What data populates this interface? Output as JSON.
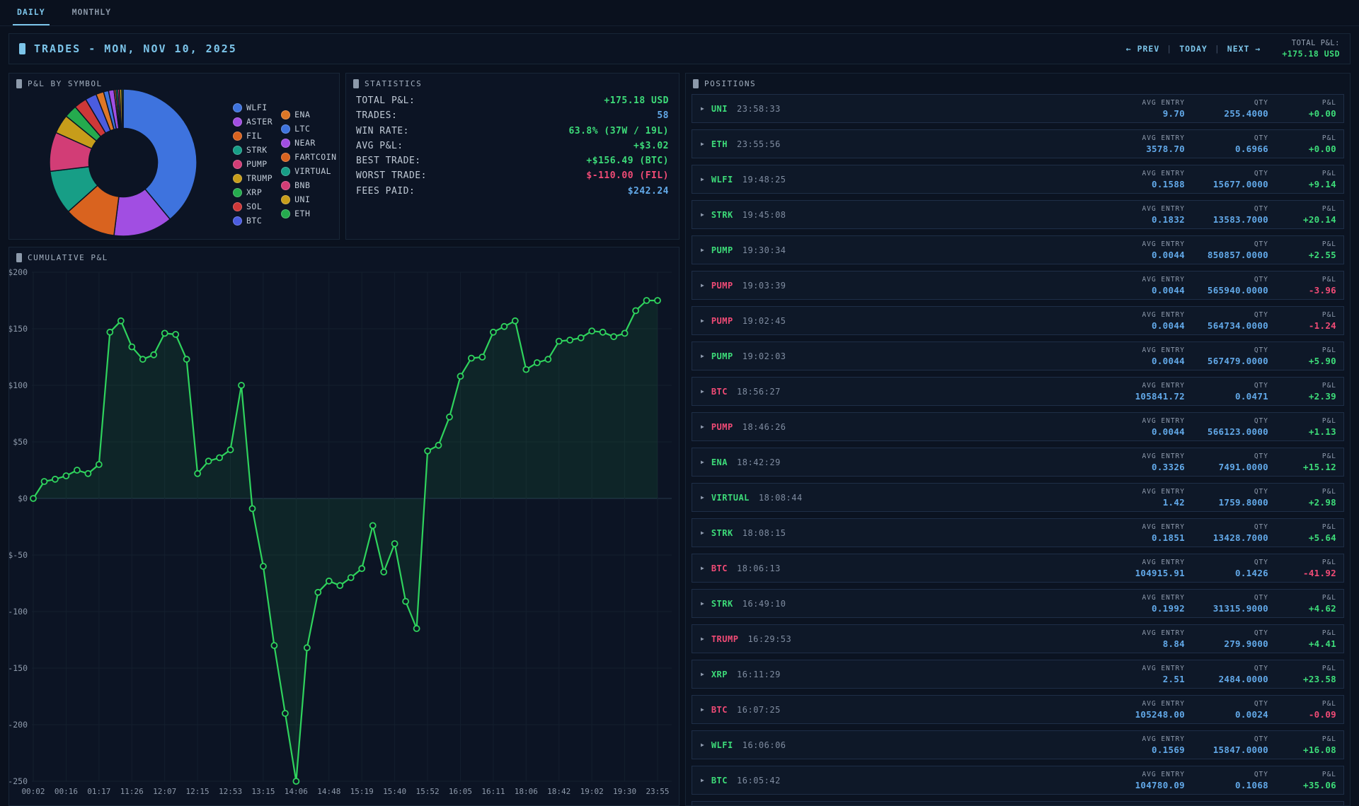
{
  "tabs": {
    "daily": "DAILY",
    "monthly": "MONTHLY"
  },
  "header": {
    "title": "TRADES - MON, NOV 10, 2025",
    "prev": "← PREV",
    "today": "TODAY",
    "next": "NEXT →",
    "separator": "|",
    "total_pnl_label": "TOTAL P&L:",
    "total_pnl_value": "+175.18 USD"
  },
  "pnl_by_symbol": {
    "title": "P&L BY SYMBOL",
    "segments": [
      {
        "label": "WLFI",
        "color": "#3e73de",
        "pct": 39.0
      },
      {
        "label": "ASTER",
        "color": "#a14ee2",
        "pct": 13.0
      },
      {
        "label": "FIL",
        "color": "#d9631f",
        "pct": 11.4
      },
      {
        "label": "STRK",
        "color": "#179e86",
        "pct": 9.7
      },
      {
        "label": "PUMP",
        "color": "#d23d76",
        "pct": 8.6
      },
      {
        "label": "TRUMP",
        "color": "#c79d1a",
        "pct": 4.2
      },
      {
        "label": "XRP",
        "color": "#25ab4e",
        "pct": 2.8
      },
      {
        "label": "SOL",
        "color": "#ce3838",
        "pct": 2.8
      },
      {
        "label": "BTC",
        "color": "#4b5ce0",
        "pct": 2.5
      },
      {
        "label": "ENA",
        "color": "#de7726",
        "pct": 1.7
      },
      {
        "label": "LTC",
        "color": "#3e73de",
        "pct": 1.1
      },
      {
        "label": "NEAR",
        "color": "#a14ee2",
        "pct": 1.2
      },
      {
        "label": "FARTCOIN",
        "color": "#d9631f",
        "pct": 0.4
      },
      {
        "label": "VIRTUAL",
        "color": "#179e86",
        "pct": 0.4
      },
      {
        "label": "BNB",
        "color": "#d23d76",
        "pct": 0.4
      },
      {
        "label": "UNI",
        "color": "#c79d1a",
        "pct": 0.5
      },
      {
        "label": "ETH",
        "color": "#25ab4e",
        "pct": 0.3
      }
    ]
  },
  "statistics": {
    "title": "STATISTICS",
    "rows": [
      {
        "label": "TOTAL P&L:",
        "value": "+175.18 USD",
        "color": "green"
      },
      {
        "label": "TRADES:",
        "value": "58",
        "color": "blue"
      },
      {
        "label": "WIN RATE:",
        "value": "63.8% (37W / 19L)",
        "color": "green"
      },
      {
        "label": "AVG P&L:",
        "value": "+$3.02",
        "color": "green"
      },
      {
        "label": "BEST TRADE:",
        "value": "+$156.49 (BTC)",
        "color": "green"
      },
      {
        "label": "WORST TRADE:",
        "value": "$-110.00 (FIL)",
        "color": "red"
      },
      {
        "label": "FEES PAID:",
        "value": "$242.24",
        "color": "blue"
      }
    ]
  },
  "chart_data": {
    "type": "line",
    "title": "CUMULATIVE P&L",
    "xlabel": "",
    "ylabel": "",
    "ylim": [
      -250,
      200
    ],
    "grid": true,
    "legend_position": "none",
    "line_color": "#2fd35d",
    "fill_color": "rgba(47,211,93,0.09)",
    "y_ticks": [
      200,
      150,
      100,
      50,
      0,
      -50,
      -100,
      -150,
      -200,
      -250
    ],
    "y_tick_labels": [
      "$200",
      "$150",
      "$100",
      "$50",
      "$0",
      "$-50",
      "$-100",
      "$-150",
      "$-200",
      "$-250"
    ],
    "x_tick_labels": [
      "00:02",
      "00:16",
      "01:17",
      "11:26",
      "12:07",
      "12:15",
      "12:53",
      "13:15",
      "14:06",
      "14:48",
      "15:19",
      "15:40",
      "15:52",
      "16:05",
      "16:11",
      "18:06",
      "18:42",
      "19:02",
      "19:30",
      "23:55"
    ],
    "tick_every_n_points": 3,
    "values": [
      0,
      15,
      17,
      20,
      25,
      22,
      30,
      147,
      157,
      134,
      123,
      127,
      146,
      145,
      123,
      22,
      33,
      36,
      43,
      100,
      -9,
      -60,
      -130,
      -190,
      -250,
      -132,
      -83,
      -73,
      -77,
      -70,
      -62,
      -24,
      -65,
      -40,
      -91,
      -115,
      42,
      47,
      72,
      108,
      124,
      125,
      147,
      152,
      157,
      114,
      120,
      123,
      139,
      140,
      142,
      148,
      147,
      143,
      146,
      166,
      175,
      175
    ]
  },
  "positions": {
    "title": "POSITIONS",
    "headers": {
      "avg_entry": "AVG ENTRY",
      "qty": "QTY",
      "pnl": "P&L"
    },
    "rows": [
      {
        "symbol": "UNI",
        "symbol_color": "green",
        "time": "23:58:33",
        "avg_entry": "9.70",
        "qty": "255.4000",
        "pnl": "+0.00",
        "pnl_color": "green"
      },
      {
        "symbol": "ETH",
        "symbol_color": "green",
        "time": "23:55:56",
        "avg_entry": "3578.70",
        "qty": "0.6966",
        "pnl": "+0.00",
        "pnl_color": "green"
      },
      {
        "symbol": "WLFI",
        "symbol_color": "green",
        "time": "19:48:25",
        "avg_entry": "0.1588",
        "qty": "15677.0000",
        "pnl": "+9.14",
        "pnl_color": "green"
      },
      {
        "symbol": "STRK",
        "symbol_color": "green",
        "time": "19:45:08",
        "avg_entry": "0.1832",
        "qty": "13583.7000",
        "pnl": "+20.14",
        "pnl_color": "green"
      },
      {
        "symbol": "PUMP",
        "symbol_color": "green",
        "time": "19:30:34",
        "avg_entry": "0.0044",
        "qty": "850857.0000",
        "pnl": "+2.55",
        "pnl_color": "green"
      },
      {
        "symbol": "PUMP",
        "symbol_color": "pink",
        "time": "19:03:39",
        "avg_entry": "0.0044",
        "qty": "565940.0000",
        "pnl": "-3.96",
        "pnl_color": "red"
      },
      {
        "symbol": "PUMP",
        "symbol_color": "pink",
        "time": "19:02:45",
        "avg_entry": "0.0044",
        "qty": "564734.0000",
        "pnl": "-1.24",
        "pnl_color": "red"
      },
      {
        "symbol": "PUMP",
        "symbol_color": "green",
        "time": "19:02:03",
        "avg_entry": "0.0044",
        "qty": "567479.0000",
        "pnl": "+5.90",
        "pnl_color": "green"
      },
      {
        "symbol": "BTC",
        "symbol_color": "pink",
        "time": "18:56:27",
        "avg_entry": "105841.72",
        "qty": "0.0471",
        "pnl": "+2.39",
        "pnl_color": "green"
      },
      {
        "symbol": "PUMP",
        "symbol_color": "pink",
        "time": "18:46:26",
        "avg_entry": "0.0044",
        "qty": "566123.0000",
        "pnl": "+1.13",
        "pnl_color": "green"
      },
      {
        "symbol": "ENA",
        "symbol_color": "green",
        "time": "18:42:29",
        "avg_entry": "0.3326",
        "qty": "7491.0000",
        "pnl": "+15.12",
        "pnl_color": "green"
      },
      {
        "symbol": "VIRTUAL",
        "symbol_color": "green",
        "time": "18:08:44",
        "avg_entry": "1.42",
        "qty": "1759.8000",
        "pnl": "+2.98",
        "pnl_color": "green"
      },
      {
        "symbol": "STRK",
        "symbol_color": "green",
        "time": "18:08:15",
        "avg_entry": "0.1851",
        "qty": "13428.7000",
        "pnl": "+5.64",
        "pnl_color": "green"
      },
      {
        "symbol": "BTC",
        "symbol_color": "pink",
        "time": "18:06:13",
        "avg_entry": "104915.91",
        "qty": "0.1426",
        "pnl": "-41.92",
        "pnl_color": "red"
      },
      {
        "symbol": "STRK",
        "symbol_color": "green",
        "time": "16:49:10",
        "avg_entry": "0.1992",
        "qty": "31315.9000",
        "pnl": "+4.62",
        "pnl_color": "green"
      },
      {
        "symbol": "TRUMP",
        "symbol_color": "pink",
        "time": "16:29:53",
        "avg_entry": "8.84",
        "qty": "279.9000",
        "pnl": "+4.41",
        "pnl_color": "green"
      },
      {
        "symbol": "XRP",
        "symbol_color": "green",
        "time": "16:11:29",
        "avg_entry": "2.51",
        "qty": "2484.0000",
        "pnl": "+23.58",
        "pnl_color": "green"
      },
      {
        "symbol": "BTC",
        "symbol_color": "pink",
        "time": "16:07:25",
        "avg_entry": "105248.00",
        "qty": "0.0024",
        "pnl": "-0.09",
        "pnl_color": "red"
      },
      {
        "symbol": "WLFI",
        "symbol_color": "green",
        "time": "16:06:06",
        "avg_entry": "0.1569",
        "qty": "15847.0000",
        "pnl": "+16.08",
        "pnl_color": "green"
      },
      {
        "symbol": "BTC",
        "symbol_color": "green",
        "time": "16:05:42",
        "avg_entry": "104780.09",
        "qty": "0.1068",
        "pnl": "+35.06",
        "pnl_color": "green"
      }
    ]
  }
}
